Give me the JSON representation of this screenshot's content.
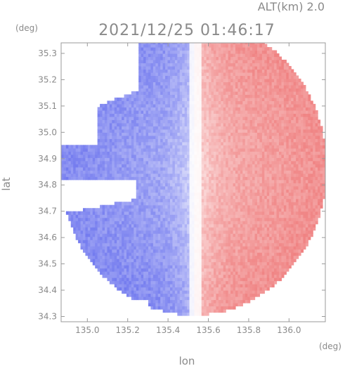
{
  "chart_data": {
    "type": "heatmap",
    "title": "2021/12/25 01:46:17",
    "altitude_label": "ALT(km) 2.0",
    "xlabel": "lon",
    "ylabel": "lat",
    "x_unit": "(deg)",
    "y_unit": "(deg)",
    "xlim": [
      134.87,
      136.18
    ],
    "ylim": [
      34.28,
      35.34
    ],
    "xticks": [
      135.0,
      135.2,
      135.4,
      135.6,
      135.8,
      136.0
    ],
    "xtick_labels": [
      "135.0",
      "135.2",
      "135.4",
      "135.6",
      "135.8",
      "136.0"
    ],
    "yticks": [
      34.3,
      34.4,
      34.5,
      34.6,
      34.7,
      34.8,
      34.9,
      35.0,
      35.1,
      35.2,
      35.3
    ],
    "ytick_labels": [
      "34.3",
      "34.4",
      "34.5",
      "34.6",
      "34.7",
      "34.8",
      "34.9",
      "35.0",
      "35.1",
      "35.2",
      "35.3"
    ],
    "grid": false,
    "colors": {
      "negative": "#6d75ee",
      "neutral": "#ffffff",
      "positive": "#ef7d7d"
    },
    "field": {
      "center_lon": 135.52,
      "center_lat": 34.86,
      "radius_lon_deg": 0.66,
      "radius_lat_deg": 0.56,
      "gap_start_lon": 135.24,
      "gap_lat_range": [
        34.74,
        34.82
      ]
    }
  }
}
